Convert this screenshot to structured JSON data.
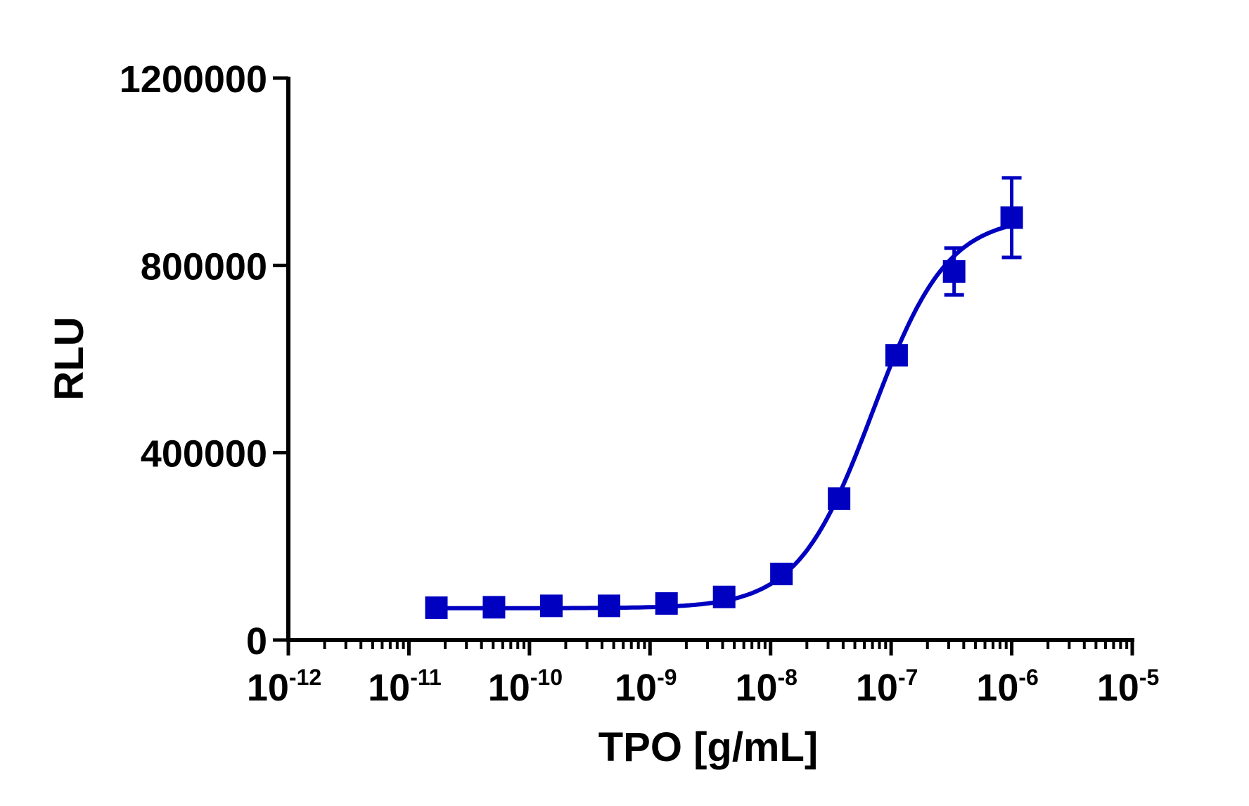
{
  "chart_data": {
    "type": "scatter",
    "title": "",
    "xlabel": "TPO [g/mL]",
    "ylabel": "RLU",
    "x_scale": "log",
    "xlim": [
      1e-12,
      1e-05
    ],
    "ylim": [
      0,
      1200000
    ],
    "x_ticks": [
      {
        "base": "10",
        "exp": "-12",
        "value": 1e-12
      },
      {
        "base": "10",
        "exp": "-11",
        "value": 1e-11
      },
      {
        "base": "10",
        "exp": "-10",
        "value": 1e-10
      },
      {
        "base": "10",
        "exp": "-9",
        "value": 1e-09
      },
      {
        "base": "10",
        "exp": "-8",
        "value": 1e-08
      },
      {
        "base": "10",
        "exp": "-7",
        "value": 1e-07
      },
      {
        "base": "10",
        "exp": "-6",
        "value": 1e-06
      },
      {
        "base": "10",
        "exp": "-5",
        "value": 1e-05
      }
    ],
    "y_ticks": [
      {
        "label": "0",
        "value": 0
      },
      {
        "label": "400000",
        "value": 400000
      },
      {
        "label": "800000",
        "value": 800000
      },
      {
        "label": "1200000",
        "value": 1200000
      }
    ],
    "grid": false,
    "legend": "none",
    "color": "#0000C0",
    "marker": "square",
    "fit_curve": "sigmoidal dose-response",
    "series": [
      {
        "x": [
          1.69e-11,
          5.08e-11,
          1.52e-10,
          4.57e-10,
          1.37e-09,
          4.12e-09,
          1.23e-08,
          3.7e-08,
          1.11e-07,
          3.33e-07,
          1e-06
        ],
        "y": [
          69000,
          70000,
          73000,
          73000,
          78000,
          92000,
          141000,
          302000,
          608000,
          787000,
          902000
        ],
        "error": [
          0,
          0,
          0,
          0,
          0,
          0,
          0,
          0,
          0,
          50000,
          85000
        ]
      }
    ]
  }
}
